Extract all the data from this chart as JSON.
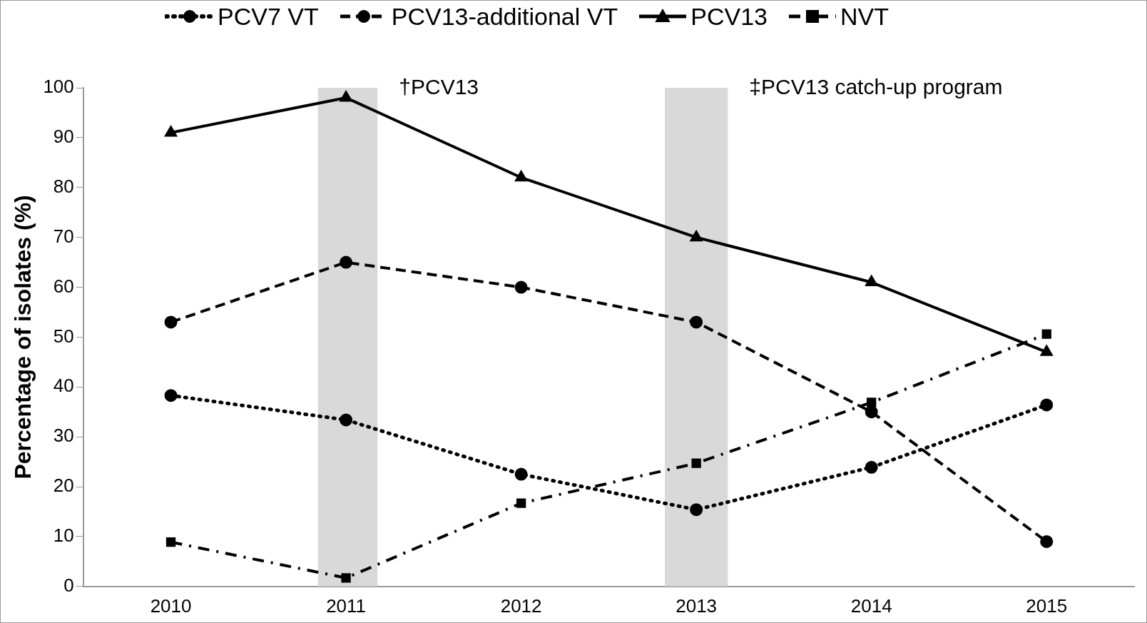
{
  "chart_data": {
    "type": "line",
    "ylabel": "Percentage of isolates (%)",
    "x": [
      2010,
      2011,
      2012,
      2013,
      2014,
      2015
    ],
    "xlim": [
      2009.5,
      2015.5
    ],
    "xticks": [
      2010,
      2011,
      2012,
      2013,
      2014,
      2015
    ],
    "ylim": [
      0,
      100
    ],
    "yticks": [
      0,
      10,
      20,
      30,
      40,
      50,
      60,
      70,
      80,
      90,
      100
    ],
    "grid": false,
    "legend": "top",
    "series": [
      {
        "name": "PCV7 VT",
        "color": "#000000",
        "marker": "circle",
        "line_style": "dotted",
        "values": [
          38.3,
          33.4,
          22.5,
          15.4,
          23.9,
          36.4
        ]
      },
      {
        "name": "PCV13-additional VT",
        "color": "#000000",
        "marker": "circle",
        "line_style": "dashed",
        "values": [
          53,
          65,
          60,
          53,
          35,
          9
        ]
      },
      {
        "name": "PCV13",
        "color": "#000000",
        "marker": "triangle",
        "line_style": "solid",
        "values": [
          91,
          98,
          82,
          70,
          61,
          47
        ]
      },
      {
        "name": "NVT",
        "color": "#000000",
        "marker": "square",
        "line_style": "dashdot",
        "values": [
          8.9,
          1.7,
          16.7,
          24.7,
          36.9,
          50.6
        ]
      }
    ],
    "bands": [
      {
        "axis": "x",
        "from": 2010.84,
        "to": 2011.18,
        "label": "†PCV13",
        "color": "#d9d9d9"
      },
      {
        "axis": "x",
        "from": 2012.82,
        "to": 2013.18,
        "label": "‡PCV13 catch-up program",
        "color": "#d9d9d9"
      }
    ]
  }
}
